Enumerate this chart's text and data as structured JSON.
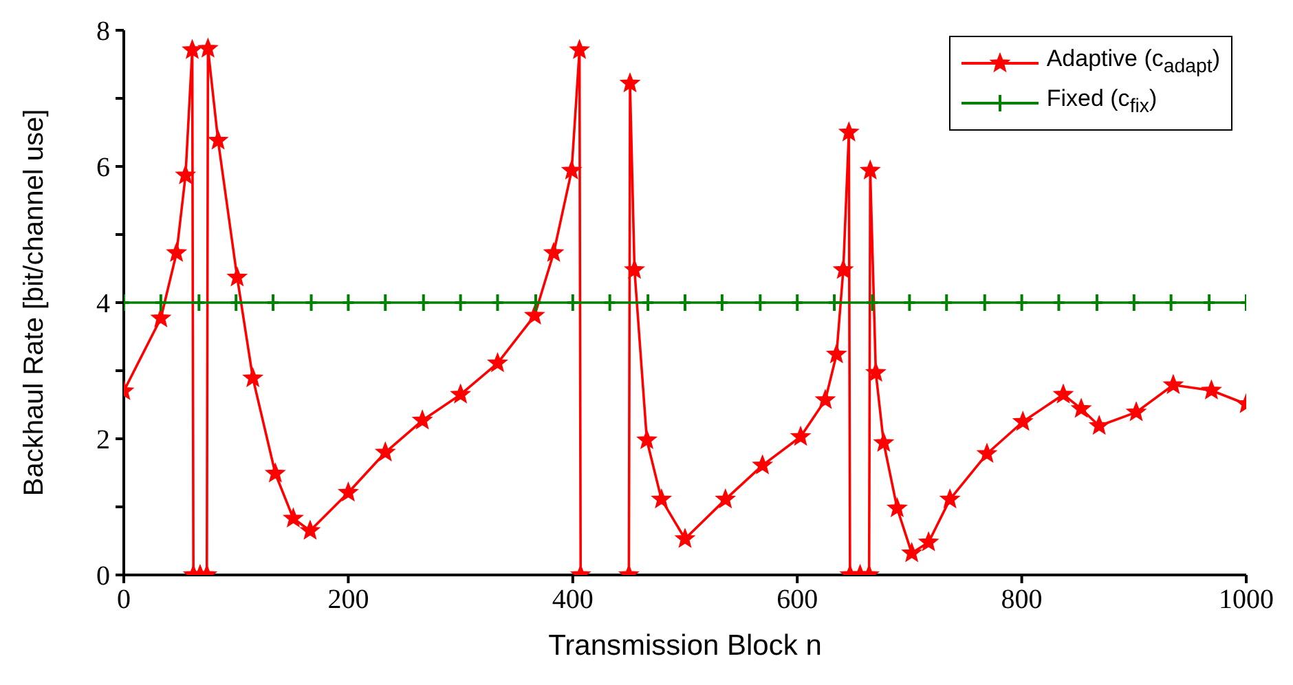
{
  "chart_data": {
    "type": "line",
    "xlabel": "Transmission Block n",
    "ylabel": "Backhaul Rate [bit/channel use]",
    "xlim": [
      0,
      1000
    ],
    "xticks": [
      0,
      200,
      400,
      600,
      800,
      1000
    ],
    "ylim": [
      0,
      8
    ],
    "yticks": [
      0,
      {
        "value": 1,
        "label": null
      },
      2,
      {
        "value": 3,
        "label": null
      },
      4,
      {
        "value": 5,
        "label": null
      },
      6,
      {
        "value": 7,
        "label": null
      },
      8
    ],
    "legend": "top right",
    "grid": false,
    "series": [
      {
        "name": "Adaptive (c$_{adapt}$)",
        "color": "#ff0000",
        "marker": "star",
        "x": [
          0,
          33,
          47,
          55,
          61,
          62,
          68,
          74,
          75,
          84,
          101,
          115,
          135,
          151,
          166,
          200,
          233,
          266,
          300,
          333,
          366,
          383,
          399,
          406,
          407,
          450,
          451,
          455,
          466,
          479,
          500,
          536,
          569,
          603,
          625,
          635,
          641,
          646,
          647,
          656,
          664,
          665,
          670,
          677,
          689,
          702,
          717,
          736,
          769,
          801,
          837,
          853,
          869,
          902,
          935,
          969,
          1000
        ],
        "values": [
          2.7,
          3.77,
          4.73,
          5.87,
          7.71,
          0,
          0,
          0,
          7.73,
          6.38,
          4.37,
          2.89,
          1.49,
          0.83,
          0.65,
          1.21,
          1.8,
          2.27,
          2.65,
          3.11,
          3.81,
          4.73,
          5.94,
          7.71,
          0,
          0,
          7.22,
          4.48,
          1.98,
          1.11,
          0.53,
          1.11,
          1.61,
          2.03,
          2.57,
          3.24,
          4.48,
          6.5,
          0,
          0,
          0,
          5.94,
          2.97,
          1.94,
          0.98,
          0.32,
          0.48,
          1.11,
          1.78,
          2.25,
          2.65,
          2.44,
          2.19,
          2.39,
          2.79,
          2.71,
          2.51
        ]
      },
      {
        "name": "Fixed (c$_{fix}$)",
        "color": "#008000",
        "marker": "cross",
        "x": [
          0,
          33,
          67,
          100,
          133,
          167,
          200,
          233,
          267,
          300,
          333,
          367,
          400,
          433,
          467,
          500,
          533,
          567,
          600,
          633,
          667,
          700,
          733,
          767,
          800,
          833,
          867,
          900,
          933,
          967,
          1000
        ],
        "values": [
          4,
          4,
          4,
          4,
          4,
          4,
          4,
          4,
          4,
          4,
          4,
          4,
          4,
          4,
          4,
          4,
          4,
          4,
          4,
          4,
          4,
          4,
          4,
          4,
          4,
          4,
          4,
          4,
          4,
          4,
          4
        ]
      }
    ]
  }
}
